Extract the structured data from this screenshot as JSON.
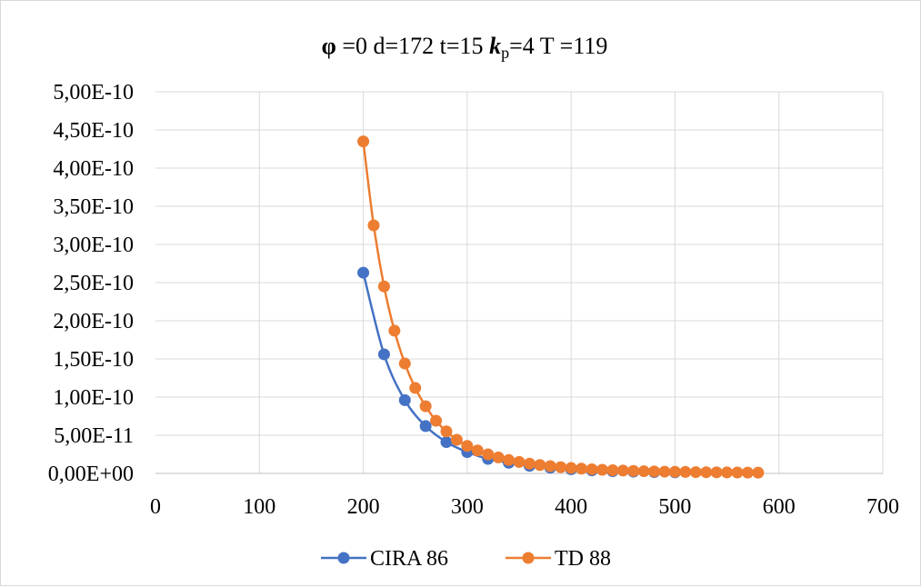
{
  "chart_data": {
    "type": "scatter",
    "title_parts": {
      "phi_symbol": "φ",
      "phi_value": " =0  d=172  t=15  ",
      "k_symbol": "k",
      "k_subscript": "p",
      "k_value": "=4  T =119"
    },
    "xlabel": "",
    "ylabel": "",
    "xlim": [
      0,
      700
    ],
    "ylim": [
      0,
      5e-10
    ],
    "x_ticks": [
      "0",
      "100",
      "200",
      "300",
      "400",
      "500",
      "600",
      "700"
    ],
    "y_ticks": [
      "0,00E+00",
      "5,00E-11",
      "1,00E-10",
      "1,50E-10",
      "2,00E-10",
      "2,50E-10",
      "3,00E-10",
      "3,50E-10",
      "4,00E-10",
      "4,50E-10",
      "5,00E-10"
    ],
    "grid": true,
    "smooth_lines": true,
    "legend_position": "bottom",
    "series": [
      {
        "name": "CIRA 86",
        "color": "#4472C4",
        "x": [
          200,
          220,
          240,
          260,
          280,
          300,
          320,
          340,
          360,
          380,
          400,
          420,
          440,
          460,
          480,
          500
        ],
        "y": [
          2.63e-10,
          1.56e-10,
          9.6e-11,
          6.2e-11,
          4.1e-11,
          2.8e-11,
          1.9e-11,
          1.4e-11,
          1e-11,
          7.5e-12,
          5.5e-12,
          4e-12,
          3e-12,
          2.3e-12,
          1.8e-12,
          1.4e-12
        ]
      },
      {
        "name": "TD 88",
        "color": "#ED7D31",
        "x": [
          200,
          210,
          220,
          230,
          240,
          250,
          260,
          270,
          280,
          290,
          300,
          310,
          320,
          330,
          340,
          350,
          360,
          370,
          380,
          390,
          400,
          410,
          420,
          430,
          440,
          450,
          460,
          470,
          480,
          490,
          500,
          510,
          520,
          530,
          540,
          550,
          560,
          570,
          580
        ],
        "y": [
          4.35e-10,
          3.25e-10,
          2.45e-10,
          1.87e-10,
          1.44e-10,
          1.12e-10,
          8.8e-11,
          6.9e-11,
          5.5e-11,
          4.4e-11,
          3.6e-11,
          3e-11,
          2.5e-11,
          2.1e-11,
          1.75e-11,
          1.5e-11,
          1.28e-11,
          1.1e-11,
          9.5e-12,
          8.2e-12,
          7.1e-12,
          6.2e-12,
          5.4e-12,
          4.8e-12,
          4.2e-12,
          3.7e-12,
          3.3e-12,
          2.9e-12,
          2.6e-12,
          2.3e-12,
          2.1e-12,
          1.9e-12,
          1.7e-12,
          1.55e-12,
          1.4e-12,
          1.28e-12,
          1.17e-12,
          1.07e-12,
          1e-12
        ]
      }
    ]
  }
}
